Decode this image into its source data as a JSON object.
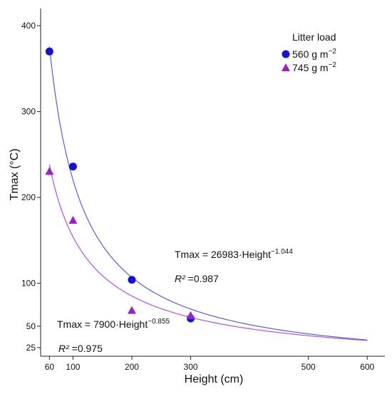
{
  "chart_data": {
    "type": "scatter",
    "xlabel": "Height (cm)",
    "ylabel": "Tmax (°C)",
    "xticks": [
      60,
      100,
      200,
      300,
      500,
      600
    ],
    "yticks": [
      25,
      50,
      100,
      200,
      300,
      400
    ],
    "xlim": [
      45,
      630
    ],
    "ylim": [
      15,
      420
    ],
    "legend": {
      "title": "Litter load",
      "position": "top-right",
      "entries": [
        {
          "label": "560 g m",
          "exp": "−2",
          "color": "#1010e0",
          "marker": "circle"
        },
        {
          "label": "745 g m",
          "exp": "−2",
          "color": "#9b1fd0",
          "marker": "triangle"
        }
      ]
    },
    "series": [
      {
        "name": "560 g m−2",
        "marker": "circle",
        "color": "#1010e0",
        "line_color": "#5a5ad8",
        "x": [
          60,
          100,
          200,
          300
        ],
        "y": [
          370,
          236,
          104,
          59
        ],
        "fit": {
          "a": 26983,
          "b": -1.044
        },
        "equation": "Tmax = 26983·Height",
        "exponent": "−1.044",
        "r2_label": "R²",
        "r2_value": " =0.987"
      },
      {
        "name": "745 g m−2",
        "marker": "triangle",
        "color": "#9b1fd0",
        "line_color": "#b050e0",
        "x": [
          60,
          100,
          200,
          300
        ],
        "y": [
          230,
          173,
          68,
          62
        ],
        "fit": {
          "a": 7900,
          "b": -0.855
        },
        "equation": "Tmax = 7900·Height",
        "exponent": "−0.855",
        "r2_label": "R²",
        "r2_value": " =0.975"
      }
    ]
  }
}
